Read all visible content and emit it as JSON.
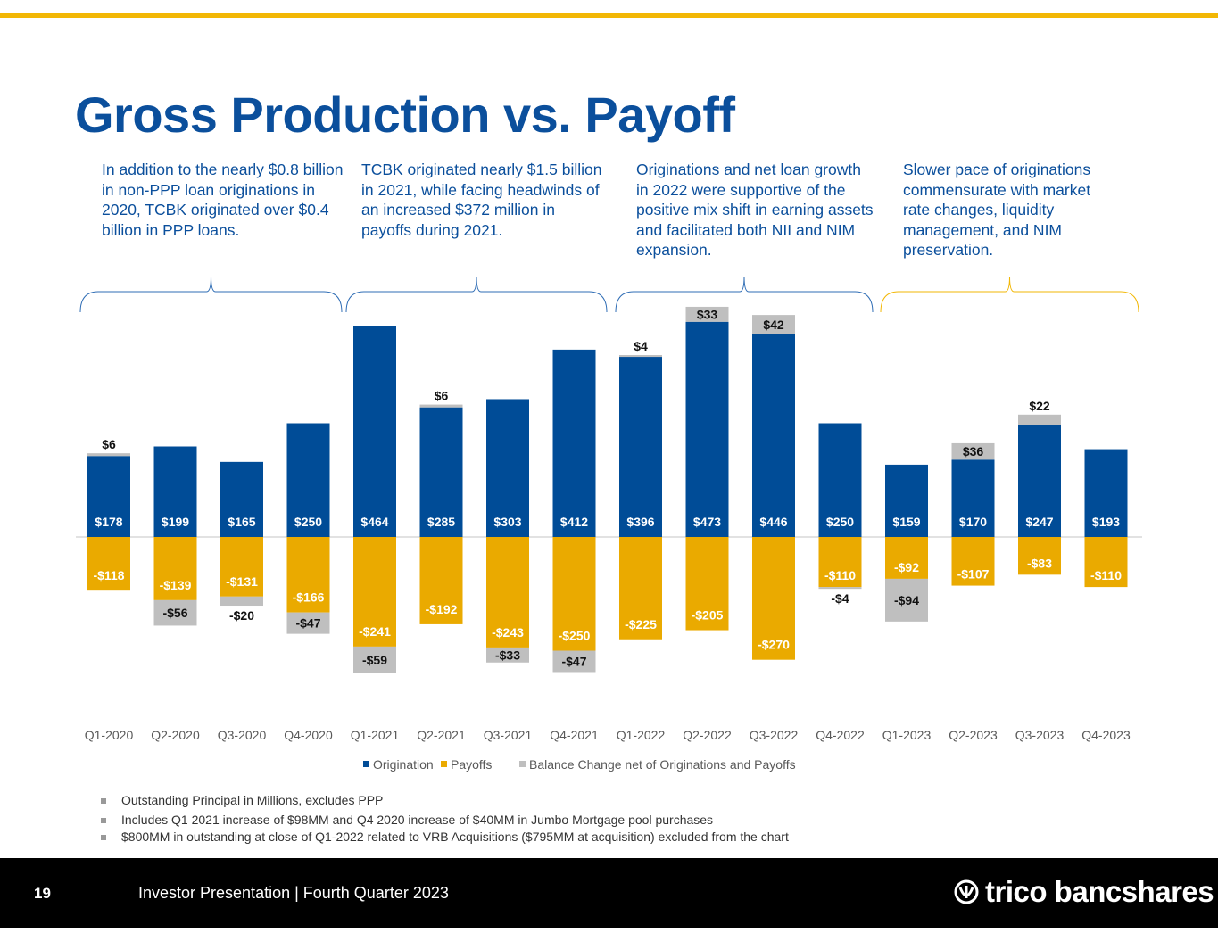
{
  "title": "Gross Production vs. Payoff",
  "notes": [
    "In addition to the nearly $0.8 billion in non-PPP loan originations in 2020, TCBK originated over $0.4 billion in PPP loans.",
    "TCBK originated nearly $1.5 billion in 2021, while facing headwinds of an increased $372 million in payoffs during 2021.",
    "Originations and net loan growth in 2022 were supportive of the positive mix shift in earning assets and facilitated both NII and NIM expansion.",
    "Slower pace of originations commensurate with market rate changes, liquidity management, and NIM preservation."
  ],
  "chart_data": {
    "type": "bar",
    "stacked": true,
    "categories": [
      "Q1-2020",
      "Q2-2020",
      "Q3-2020",
      "Q4-2020",
      "Q1-2021",
      "Q2-2021",
      "Q3-2021",
      "Q4-2021",
      "Q1-2022",
      "Q2-2022",
      "Q3-2022",
      "Q4-2022",
      "Q1-2023",
      "Q2-2023",
      "Q3-2023",
      "Q4-2023"
    ],
    "series": [
      {
        "name": "Origination",
        "color": "#004c97",
        "values": [
          178,
          199,
          165,
          250,
          464,
          285,
          303,
          412,
          396,
          473,
          446,
          250,
          159,
          170,
          247,
          193
        ]
      },
      {
        "name": "Payoffs",
        "color": "#eaaa00",
        "values": [
          -118,
          -139,
          -131,
          -166,
          -241,
          -192,
          -243,
          -250,
          -225,
          -205,
          -270,
          -110,
          -92,
          -107,
          -83,
          -110
        ]
      },
      {
        "name": "Balance Change net of Originations and Payoffs",
        "color": "#bfbfbf",
        "values": [
          6,
          -56,
          -20,
          -47,
          -59,
          6,
          -33,
          -47,
          4,
          33,
          42,
          -4,
          -94,
          36,
          22,
          null
        ]
      }
    ],
    "value_prefix": "$",
    "legend": "bottom",
    "grid": false
  },
  "footnotes": [
    "Outstanding Principal in Millions, excludes PPP",
    "Includes Q1 2021 increase of $98MM and Q4 2020 increase of $40MM in Jumbo Mortgage pool purchases",
    "$800MM in outstanding at close of Q1-2022 related to VRB Acquisitions ($795MM at acquisition) excluded from the chart"
  ],
  "footer": {
    "page": "19",
    "title": "Investor Presentation | Fourth Quarter 2023",
    "logo": "trico bancshares"
  }
}
